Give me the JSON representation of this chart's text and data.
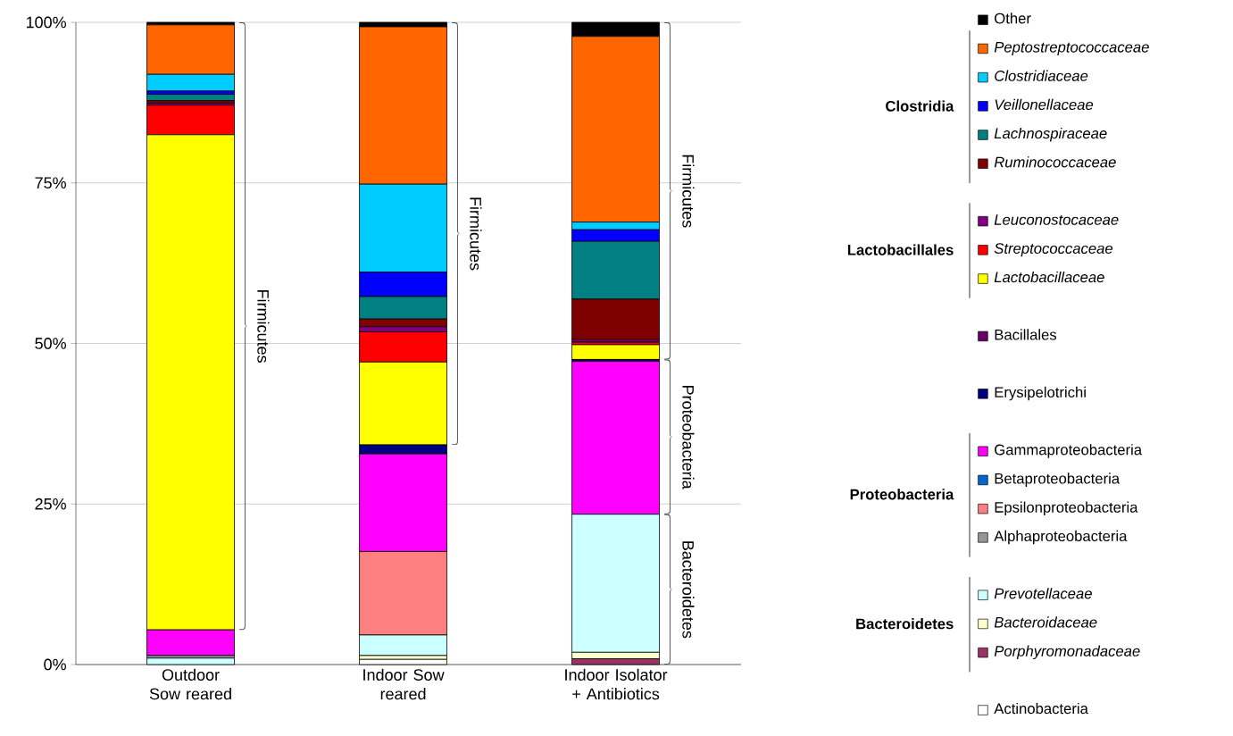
{
  "chart_data": {
    "type": "bar",
    "stacked": true,
    "categories": [
      "Outdoor Sow reared",
      "Indoor Sow reared",
      "Indoor Isolator + Antibiotics"
    ],
    "series": [
      {
        "name": "Actinobacteria",
        "color": "#ffffff",
        "values": [
          null,
          0.8,
          null
        ]
      },
      {
        "name": "Porphyromonadaceae",
        "color": "#993366",
        "values": [
          null,
          null,
          0.9
        ]
      },
      {
        "name": "Bacteroidaceae",
        "color": "#ffffcc",
        "values": [
          null,
          0.6,
          1.0
        ]
      },
      {
        "name": "Prevotellaceae",
        "color": "#ccffff",
        "values": [
          1.0,
          3.2,
          21.5
        ]
      },
      {
        "name": "Alphaproteobacteria",
        "color": "#969696",
        "values": [
          0.4,
          null,
          null
        ]
      },
      {
        "name": "Epsilonproteobacteria",
        "color": "#ff8080",
        "values": [
          null,
          13.0,
          null
        ]
      },
      {
        "name": "Betaproteobacteria",
        "color": "#0066cc",
        "values": [
          null,
          null,
          null
        ]
      },
      {
        "name": "Gammaproteobacteria",
        "color": "#ff00ff",
        "values": [
          4.0,
          15.2,
          23.8
        ]
      },
      {
        "name": "Erysipelotrichi",
        "color": "#000080",
        "values": [
          null,
          1.4,
          0.3
        ]
      },
      {
        "name": "Bacillales",
        "color": "#660066",
        "values": [
          null,
          null,
          null
        ]
      },
      {
        "name": "Lactobacillaceae",
        "color": "#ffff00",
        "values": [
          77.1,
          12.9,
          2.3
        ]
      },
      {
        "name": "Streptococcaceae",
        "color": "#ff0000",
        "values": [
          4.6,
          4.7,
          0.4
        ]
      },
      {
        "name": "Leuconostocaceae",
        "color": "#800080",
        "values": [
          0.3,
          0.8,
          0.4
        ]
      },
      {
        "name": "Ruminococcaceae",
        "color": "#800000",
        "values": [
          0.4,
          1.2,
          6.3
        ]
      },
      {
        "name": "Lachnospiraceae",
        "color": "#008080",
        "values": [
          1.0,
          3.5,
          9.0
        ]
      },
      {
        "name": "Veillonellaceae",
        "color": "#0000ff",
        "values": [
          0.5,
          3.8,
          1.8
        ]
      },
      {
        "name": "Clostridiaceae",
        "color": "#00ccff",
        "values": [
          2.6,
          13.7,
          1.2
        ]
      },
      {
        "name": "Peptostreptococcaceae",
        "color": "#ff6600",
        "values": [
          7.7,
          24.5,
          28.9
        ]
      },
      {
        "name": "Other",
        "color": "#000000",
        "values": [
          0.4,
          0.7,
          2.2
        ]
      }
    ],
    "ylim": [
      0,
      100
    ],
    "yticks": [
      {
        "value": 0,
        "label": "0%"
      },
      {
        "value": 25,
        "label": "25%"
      },
      {
        "value": 50,
        "label": "50%"
      },
      {
        "value": 75,
        "label": "75%"
      },
      {
        "value": 100,
        "label": "100%"
      }
    ],
    "grid": "y",
    "legend": "right",
    "annotations": [
      "Firmicutes",
      "Firmicutes",
      "Firmicutes",
      "Proteobacteria",
      "Bacteroidetes",
      "Clostridia",
      "Lactobacillales",
      "Proteobacteria",
      "Bacteroidetes"
    ]
  }
}
